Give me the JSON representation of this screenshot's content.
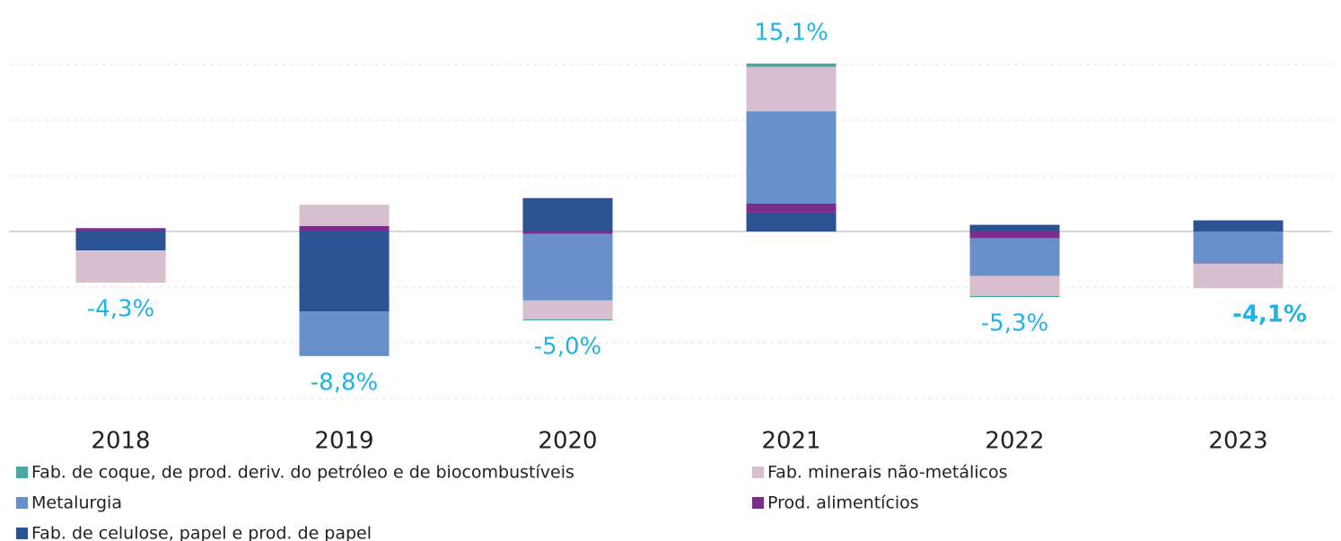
{
  "chart_data": {
    "type": "stacked_bar",
    "categories": [
      "2018",
      "2019",
      "2020",
      "2021",
      "2022",
      "2023"
    ],
    "series": [
      {
        "name": "Fab. de coque, de prod. deriv. do petróleo e de biocombustíveis",
        "color": "#4aa8a0",
        "values": [
          0,
          0,
          -0.1,
          0.3,
          -0.1,
          0
        ]
      },
      {
        "name": "Fab. minerais não-metálicos",
        "color": "#d8bfd0",
        "values": [
          -2.9,
          1.9,
          -1.7,
          4.0,
          -1.8,
          -2.2
        ]
      },
      {
        "name": "Metalurgia",
        "color": "#6a90cc",
        "values": [
          0,
          -4.0,
          -6.0,
          8.3,
          -3.4,
          -2.9
        ]
      },
      {
        "name": "Prod. alimentícios",
        "color": "#7b2d8b",
        "values": [
          0.3,
          0.5,
          -0.2,
          0.8,
          -0.6,
          0
        ]
      },
      {
        "name": "Fab. de celulose, papel e prod. de papel",
        "color": "#2b5293",
        "values": [
          -1.7,
          -7.2,
          3.0,
          1.7,
          0.6,
          1.0
        ]
      }
    ],
    "totals": [
      -4.3,
      -8.8,
      -5.0,
      15.1,
      -5.3,
      -4.1
    ],
    "total_labels": [
      "-4,3%",
      "-8,8%",
      "-5,0%",
      "15,1%",
      "-5,3%",
      "-4,1%"
    ],
    "total_bold": [
      false,
      false,
      false,
      false,
      false,
      true
    ],
    "total_color": "#1fb3e8",
    "ylim": [
      -15,
      16
    ],
    "yticks": [
      -15,
      -10,
      -5,
      0,
      5,
      10,
      15
    ],
    "grid": true
  }
}
